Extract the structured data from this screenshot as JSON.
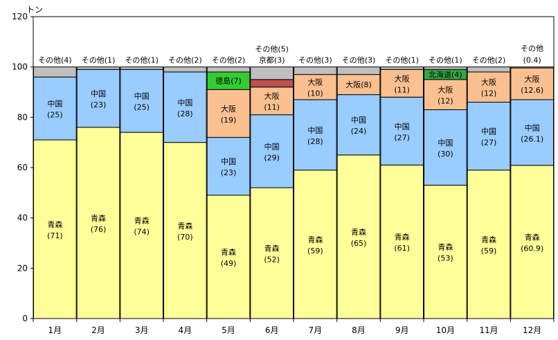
{
  "chart_data": {
    "type": "bar",
    "stacked": true,
    "ylabel": "トン",
    "ylim": [
      0,
      120
    ],
    "yticks": [
      0,
      20,
      40,
      60,
      80,
      100,
      120
    ],
    "colors": {
      "青森": "#ffff99",
      "中国": "#99ccff",
      "大阪": "#fac090",
      "京都": "#c0504d",
      "徳島": "#33cc33",
      "北海道": "#33aa44",
      "その他": "#bfbfbf"
    },
    "categories": [
      "1月",
      "2月",
      "3月",
      "4月",
      "5月",
      "6月",
      "7月",
      "8月",
      "9月",
      "10月",
      "11月",
      "12月"
    ],
    "bars": [
      {
        "month": "1月",
        "segments": [
          {
            "origin": "青森",
            "value": 71,
            "label": "(71)"
          },
          {
            "origin": "中国",
            "value": 25,
            "label": "(25)"
          },
          {
            "origin": "その他",
            "value": 4,
            "label": "(4)"
          }
        ]
      },
      {
        "month": "2月",
        "segments": [
          {
            "origin": "青森",
            "value": 76,
            "label": "(76)"
          },
          {
            "origin": "中国",
            "value": 23,
            "label": "(23)"
          },
          {
            "origin": "その他",
            "value": 1,
            "label": "(1)"
          }
        ]
      },
      {
        "month": "3月",
        "segments": [
          {
            "origin": "青森",
            "value": 74,
            "label": "(74)"
          },
          {
            "origin": "中国",
            "value": 25,
            "label": "(25)"
          },
          {
            "origin": "その他",
            "value": 1,
            "label": "(1)"
          }
        ]
      },
      {
        "month": "4月",
        "segments": [
          {
            "origin": "青森",
            "value": 70,
            "label": "(70)"
          },
          {
            "origin": "中国",
            "value": 28,
            "label": "(28)"
          },
          {
            "origin": "その他",
            "value": 2,
            "label": "(2)"
          }
        ]
      },
      {
        "month": "5月",
        "segments": [
          {
            "origin": "青森",
            "value": 49,
            "label": "(49)"
          },
          {
            "origin": "中国",
            "value": 23,
            "label": "(23)"
          },
          {
            "origin": "大阪",
            "value": 19,
            "label": "(19)"
          },
          {
            "origin": "徳島",
            "value": 7,
            "label": "(7)"
          },
          {
            "origin": "その他",
            "value": 2,
            "label": "(2)"
          }
        ]
      },
      {
        "month": "6月",
        "segments": [
          {
            "origin": "青森",
            "value": 52,
            "label": "(52)"
          },
          {
            "origin": "中国",
            "value": 29,
            "label": "(29)"
          },
          {
            "origin": "大阪",
            "value": 11,
            "label": "(11)"
          },
          {
            "origin": "京都",
            "value": 3,
            "label": "(3)"
          },
          {
            "origin": "その他",
            "value": 5,
            "label": "(5)"
          }
        ]
      },
      {
        "month": "7月",
        "segments": [
          {
            "origin": "青森",
            "value": 59,
            "label": "(59)"
          },
          {
            "origin": "中国",
            "value": 28,
            "label": "(28)"
          },
          {
            "origin": "大阪",
            "value": 10,
            "label": "(10)"
          },
          {
            "origin": "その他",
            "value": 3,
            "label": "(3)"
          }
        ]
      },
      {
        "month": "8月",
        "segments": [
          {
            "origin": "青森",
            "value": 65,
            "label": "(65)"
          },
          {
            "origin": "中国",
            "value": 24,
            "label": "(24)"
          },
          {
            "origin": "大阪",
            "value": 8,
            "label": "(8)"
          },
          {
            "origin": "その他",
            "value": 3,
            "label": "(3)"
          }
        ]
      },
      {
        "month": "9月",
        "segments": [
          {
            "origin": "青森",
            "value": 61,
            "label": "(61)"
          },
          {
            "origin": "中国",
            "value": 27,
            "label": "(27)"
          },
          {
            "origin": "大阪",
            "value": 11,
            "label": "(11)"
          },
          {
            "origin": "その他",
            "value": 1,
            "label": "(1)"
          }
        ]
      },
      {
        "month": "10月",
        "segments": [
          {
            "origin": "青森",
            "value": 53,
            "label": "(53)"
          },
          {
            "origin": "中国",
            "value": 30,
            "label": "(30)"
          },
          {
            "origin": "大阪",
            "value": 12,
            "label": "(12)"
          },
          {
            "origin": "北海道",
            "value": 4,
            "label": "(4)"
          },
          {
            "origin": "その他",
            "value": 1,
            "label": "(1)"
          }
        ]
      },
      {
        "month": "11月",
        "segments": [
          {
            "origin": "青森",
            "value": 59,
            "label": "(59)"
          },
          {
            "origin": "中国",
            "value": 27,
            "label": "(27)"
          },
          {
            "origin": "大阪",
            "value": 12,
            "label": "(12)"
          },
          {
            "origin": "その他",
            "value": 2,
            "label": "(2)"
          }
        ]
      },
      {
        "month": "12月",
        "segments": [
          {
            "origin": "青森",
            "value": 60.9,
            "label": "(60.9)"
          },
          {
            "origin": "中国",
            "value": 26.1,
            "label": "(26.1)"
          },
          {
            "origin": "大阪",
            "value": 12.6,
            "label": "(12.6)"
          },
          {
            "origin": "その他",
            "value": 0.4,
            "label": "(0.4)"
          }
        ]
      }
    ]
  }
}
